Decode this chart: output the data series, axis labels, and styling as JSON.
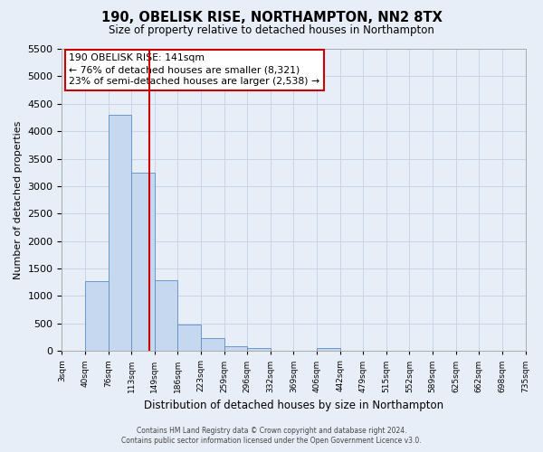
{
  "title": "190, OBELISK RISE, NORTHAMPTON, NN2 8TX",
  "subtitle": "Size of property relative to detached houses in Northampton",
  "xlabel": "Distribution of detached houses by size in Northampton",
  "ylabel": "Number of detached properties",
  "bin_labels": [
    "3sqm",
    "40sqm",
    "76sqm",
    "113sqm",
    "149sqm",
    "186sqm",
    "223sqm",
    "259sqm",
    "296sqm",
    "332sqm",
    "369sqm",
    "406sqm",
    "442sqm",
    "479sqm",
    "515sqm",
    "552sqm",
    "589sqm",
    "625sqm",
    "662sqm",
    "698sqm",
    "735sqm"
  ],
  "bar_heights": [
    0,
    1270,
    4300,
    3250,
    1290,
    480,
    230,
    90,
    60,
    0,
    0,
    60,
    0,
    0,
    0,
    0,
    0,
    0,
    0,
    0
  ],
  "bar_color": "#c5d8f0",
  "bar_edge_color": "#5b8ec4",
  "annotation_title": "190 OBELISK RISE: 141sqm",
  "annotation_line1": "← 76% of detached houses are smaller (8,321)",
  "annotation_line2": "23% of semi-detached houses are larger (2,538) →",
  "annotation_box_color": "#ffffff",
  "annotation_box_edge_color": "#cc0000",
  "vline_color": "#cc0000",
  "ylim": [
    0,
    5500
  ],
  "yticks": [
    0,
    500,
    1000,
    1500,
    2000,
    2500,
    3000,
    3500,
    4000,
    4500,
    5000,
    5500
  ],
  "grid_color": "#c8d4e8",
  "background_color": "#e8eef8",
  "footer_line1": "Contains HM Land Registry data © Crown copyright and database right 2024.",
  "footer_line2": "Contains public sector information licensed under the Open Government Licence v3.0."
}
